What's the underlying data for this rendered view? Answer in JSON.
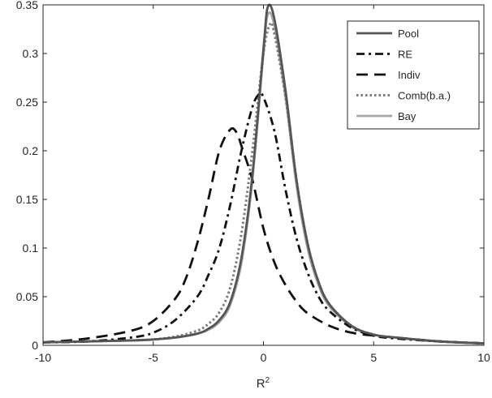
{
  "chart_data": {
    "type": "line",
    "title": "",
    "xlabel": "R",
    "xlabel_superscript": "2",
    "ylabel": "",
    "xlim": [
      -10,
      10
    ],
    "ylim": [
      0,
      0.35
    ],
    "xticks": [
      -10,
      -5,
      0,
      5,
      10
    ],
    "xtick_labels": [
      "-10",
      "-5",
      "0",
      "5",
      "10"
    ],
    "yticks": [
      0,
      0.05,
      0.1,
      0.15,
      0.2,
      0.25,
      0.3,
      0.35
    ],
    "ytick_labels": [
      "0",
      "0.05",
      "0.1",
      "0.15",
      "0.2",
      "0.25",
      "0.3",
      "0.35"
    ],
    "grid": false,
    "legend_position": "top-right",
    "series": [
      {
        "name": "Pool",
        "color": "#555555",
        "style": "solid",
        "x": [
          -10,
          -8,
          -6,
          -5,
          -4,
          -3,
          -2.5,
          -2,
          -1.5,
          -1,
          -0.5,
          0,
          0.2,
          0.5,
          1,
          1.5,
          2,
          2.5,
          3,
          4,
          5,
          6,
          8,
          10
        ],
        "y": [
          0.003,
          0.004,
          0.005,
          0.006,
          0.008,
          0.012,
          0.017,
          0.026,
          0.045,
          0.09,
          0.175,
          0.305,
          0.348,
          0.335,
          0.262,
          0.17,
          0.105,
          0.065,
          0.042,
          0.02,
          0.011,
          0.008,
          0.004,
          0.002
        ]
      },
      {
        "name": "RE",
        "color": "#111111",
        "style": "dashdot",
        "x": [
          -10,
          -8,
          -6,
          -5,
          -4,
          -3,
          -2.5,
          -2,
          -1.5,
          -1,
          -0.5,
          -0.2,
          0,
          0.5,
          1,
          1.5,
          2,
          2.5,
          3,
          4,
          5,
          6,
          8,
          10
        ],
        "y": [
          0.003,
          0.004,
          0.008,
          0.013,
          0.026,
          0.05,
          0.072,
          0.1,
          0.145,
          0.2,
          0.245,
          0.258,
          0.255,
          0.22,
          0.16,
          0.11,
          0.075,
          0.05,
          0.035,
          0.018,
          0.01,
          0.007,
          0.004,
          0.002
        ]
      },
      {
        "name": "Indiv",
        "color": "#111111",
        "style": "dashed",
        "x": [
          -10,
          -8,
          -6,
          -5,
          -4,
          -3.5,
          -3,
          -2.5,
          -2,
          -1.5,
          -1.2,
          -1,
          -0.5,
          0,
          0.5,
          1,
          1.5,
          2,
          3,
          4,
          5,
          6,
          8,
          10
        ],
        "y": [
          0.003,
          0.007,
          0.015,
          0.025,
          0.048,
          0.07,
          0.105,
          0.15,
          0.2,
          0.222,
          0.218,
          0.205,
          0.17,
          0.12,
          0.085,
          0.062,
          0.045,
          0.033,
          0.02,
          0.013,
          0.01,
          0.008,
          0.004,
          0.002
        ]
      },
      {
        "name": "Comb(b.a.)",
        "color": "#7a7a7a",
        "style": "dotted",
        "x": [
          -10,
          -8,
          -6,
          -5,
          -4,
          -3,
          -2.5,
          -2,
          -1.5,
          -1,
          -0.5,
          0,
          0.3,
          0.5,
          1,
          1.5,
          2,
          2.5,
          3,
          4,
          5,
          6,
          8,
          10
        ],
        "y": [
          0.003,
          0.004,
          0.005,
          0.006,
          0.009,
          0.015,
          0.022,
          0.034,
          0.06,
          0.115,
          0.2,
          0.3,
          0.33,
          0.32,
          0.255,
          0.17,
          0.105,
          0.065,
          0.042,
          0.02,
          0.011,
          0.008,
          0.004,
          0.002
        ]
      },
      {
        "name": "Bay",
        "color": "#a6a6a6",
        "style": "solid",
        "x": [
          -10,
          -8,
          -6,
          -5,
          -4,
          -3,
          -2.5,
          -2,
          -1.5,
          -1,
          -0.5,
          0,
          0.2,
          0.5,
          1,
          1.5,
          2,
          2.5,
          3,
          4,
          5,
          6,
          8,
          10
        ],
        "y": [
          0.003,
          0.004,
          0.005,
          0.006,
          0.008,
          0.012,
          0.016,
          0.024,
          0.042,
          0.085,
          0.17,
          0.3,
          0.34,
          0.328,
          0.255,
          0.165,
          0.1,
          0.062,
          0.04,
          0.019,
          0.011,
          0.008,
          0.004,
          0.002
        ]
      }
    ]
  }
}
